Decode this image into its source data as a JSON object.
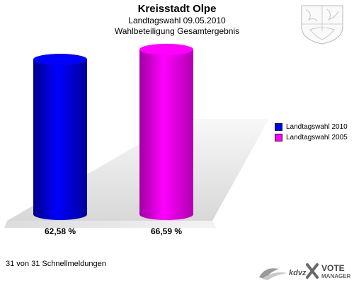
{
  "header": {
    "title": "Kreisstadt Olpe",
    "subtitle1": "Landtagswahl 09.05.2010",
    "subtitle2": "Wahlbeteiligung Gesamtergebnis"
  },
  "chart_data": {
    "type": "bar",
    "title": "Kreisstadt Olpe",
    "subtitle": "Landtagswahl 09.05.2010 Wahlbeteiligung Gesamtergebnis",
    "categories": [
      "Landtagswahl 2010",
      "Landtagswahl 2005"
    ],
    "values": [
      62.58,
      66.59
    ],
    "value_labels": [
      "62,58 %",
      "66,59 %"
    ],
    "colors": [
      "#0000ff",
      "#ff00ff"
    ],
    "ylim": [
      0,
      70
    ],
    "grid": false,
    "legend_position": "right"
  },
  "legend": {
    "items": [
      {
        "label": "Landtagswahl 2010",
        "color": "#0000ff"
      },
      {
        "label": "Landtagswahl 2005",
        "color": "#ff00ff"
      }
    ]
  },
  "footer": {
    "status": "31 von 31 Schnellmeldungen",
    "brand_left": "kdvz",
    "brand_right_1": "VOTE",
    "brand_right_2": "MANAGER"
  },
  "icons": {
    "crest": "coat-of-arms-icon",
    "brand": "votemanager-logo-icon"
  }
}
